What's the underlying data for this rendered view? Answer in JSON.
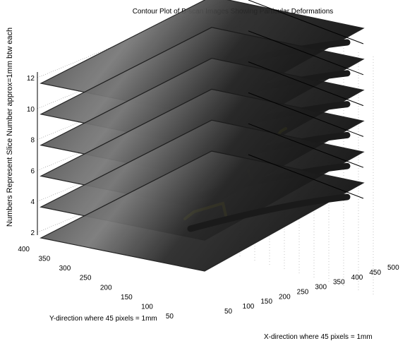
{
  "chart_data": {
    "type": "3d-stacked-slices",
    "title": "Contour Plot of B-scan Images Showing Particular Deformations",
    "zlabel": "Numbers Represent Slice Number approx=1mm btw each",
    "ylabel": "Y-direction where 45 pixels = 1mm",
    "xlabel": "X-direction where 45 pixels = 1mm",
    "z_ticks": [
      "2",
      "4",
      "6",
      "8",
      "10",
      "12"
    ],
    "y_ticks": [
      "400",
      "350",
      "300",
      "250",
      "200",
      "150",
      "100",
      "50"
    ],
    "x_ticks": [
      "50",
      "100",
      "150",
      "200",
      "250",
      "300",
      "350",
      "400",
      "450",
      "500"
    ],
    "zlim": [
      2,
      12
    ],
    "ylim": [
      50,
      400
    ],
    "xlim": [
      50,
      500
    ],
    "slices": [
      {
        "z": 12,
        "has_marker": false
      },
      {
        "z": 10,
        "has_marker": false
      },
      {
        "z": 8,
        "has_marker": true
      },
      {
        "z": 6,
        "has_marker": true
      },
      {
        "z": 4,
        "has_marker": true
      },
      {
        "z": 2,
        "has_marker": false
      }
    ],
    "grid": true,
    "colors": {
      "slice": "#1a1a1a",
      "marker": "#f2ea00",
      "grid": "#888888"
    }
  }
}
